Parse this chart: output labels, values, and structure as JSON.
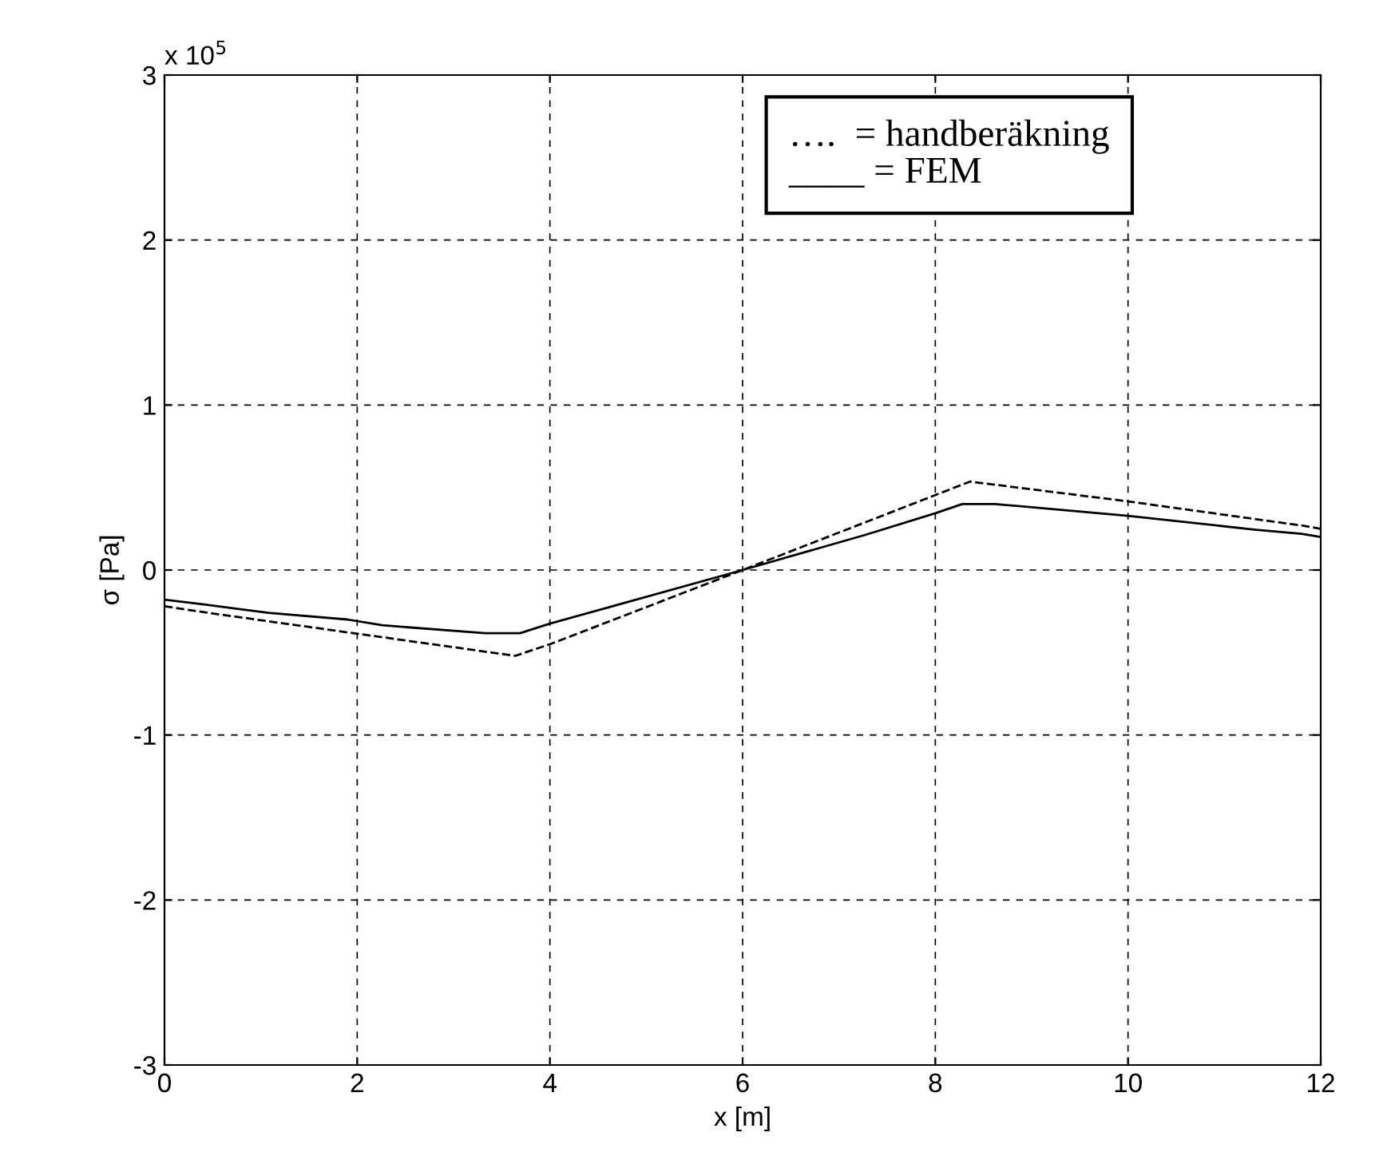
{
  "chart_data": {
    "type": "line",
    "xlabel": "x [m]",
    "ylabel": "σ [Pa]",
    "xlim": [
      0,
      12
    ],
    "xticks": [
      0,
      2,
      4,
      6,
      8,
      10,
      12
    ],
    "ylim": [
      -3,
      3
    ],
    "yticks": [
      -3,
      -2,
      -1,
      0,
      1,
      2,
      3
    ],
    "grid": true,
    "series": [
      {
        "color": "#000000",
        "line_style": "dashed",
        "x": [
          0,
          0.46,
          3.64,
          4.0,
          6.0,
          8.36,
          10.0,
          11.8,
          12
        ],
        "values": [
          -0.22,
          -0.26,
          -0.52,
          -0.45,
          0.0,
          0.536,
          0.416,
          0.27,
          0.25
        ]
      },
      {
        "color": "#000000",
        "line_style": "solid",
        "x": [
          0,
          0.36,
          1.08,
          1.9,
          2.26,
          3.33,
          3.69,
          4.0,
          6.0,
          7.28,
          8.0,
          8.28,
          8.62,
          10.0,
          11.33,
          11.8,
          12
        ],
        "values": [
          -0.18,
          -0.205,
          -0.26,
          -0.3,
          -0.335,
          -0.383,
          -0.383,
          -0.325,
          0.0,
          0.214,
          0.344,
          0.4,
          0.4,
          0.328,
          0.244,
          0.22,
          0.2
        ]
      }
    ],
    "annotations": [
      "x 10$^{5}$",
      "….  = handberäkning\n____ = FEM"
    ]
  }
}
